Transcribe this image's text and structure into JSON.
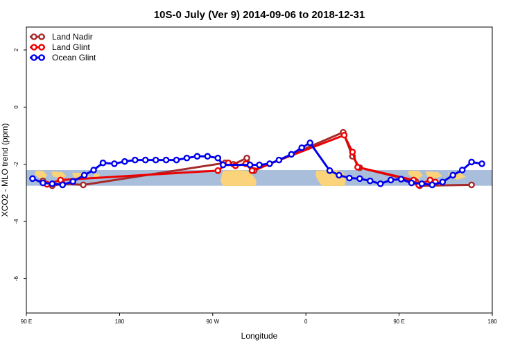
{
  "chart_data": {
    "type": "line",
    "title": "10S-0 July (Ver 9)   2014-09-06 to 2018-12-31",
    "xlabel": "Longitude",
    "ylabel": "XCO2 - MLO trend (ppm)",
    "x_ticks": [
      {
        "value": 90,
        "label": "90 E"
      },
      {
        "value": 180,
        "label": "180"
      },
      {
        "value": 270,
        "label": "90 W"
      },
      {
        "value": 360,
        "label": "0"
      },
      {
        "value": 450,
        "label": "90 E"
      },
      {
        "value": 540,
        "label": "180"
      }
    ],
    "y_ticks": [
      {
        "value": 2,
        "label": "2"
      },
      {
        "value": 0,
        "label": "0"
      },
      {
        "value": -2,
        "label": "-2"
      },
      {
        "value": -4,
        "label": "-4"
      },
      {
        "value": -6,
        "label": "-6"
      }
    ],
    "xlim": [
      90,
      540
    ],
    "ylim": [
      -7.2,
      2.8
    ],
    "grid": false,
    "legend_position": "top-left",
    "map_strip": {
      "ylim": [
        -2.75,
        -2.2
      ],
      "ocean_color": "#a9bedb",
      "land_color": "#fad37a"
    },
    "series": [
      {
        "name": "Land Nadir",
        "color": "#a52a2a",
        "points": [
          [
            106,
            -2.58
          ],
          [
            115,
            -2.75
          ],
          [
            125,
            -2.68
          ],
          [
            145,
            -2.72
          ],
          [
            282,
            -1.95
          ],
          [
            290,
            -2.0
          ],
          [
            303,
            -1.78
          ],
          [
            310,
            -2.22
          ],
          [
            396,
            -0.88
          ],
          [
            405,
            -1.72
          ],
          [
            412,
            -2.12
          ],
          [
            466,
            -2.6
          ],
          [
            470,
            -2.75
          ],
          [
            520,
            -2.72
          ]
        ]
      },
      {
        "name": "Land Glint",
        "color": "#ee0000",
        "points": [
          [
            110,
            -2.7
          ],
          [
            123,
            -2.55
          ],
          [
            275,
            -2.22
          ],
          [
            285,
            -1.95
          ],
          [
            292,
            -2.05
          ],
          [
            302,
            -1.98
          ],
          [
            308,
            -2.22
          ],
          [
            397,
            -0.98
          ],
          [
            405,
            -1.57
          ],
          [
            410,
            -2.1
          ],
          [
            464,
            -2.55
          ],
          [
            469,
            -2.72
          ],
          [
            480,
            -2.55
          ],
          [
            485,
            -2.62
          ]
        ]
      },
      {
        "name": "Ocean Glint",
        "color": "#0000ee",
        "points": [
          [
            96,
            -2.5
          ],
          [
            106,
            -2.65
          ],
          [
            115,
            -2.68
          ],
          [
            125,
            -2.72
          ],
          [
            135,
            -2.6
          ],
          [
            146,
            -2.38
          ],
          [
            155,
            -2.2
          ],
          [
            164,
            -1.95
          ],
          [
            175,
            -1.98
          ],
          [
            185,
            -1.9
          ],
          [
            195,
            -1.85
          ],
          [
            205,
            -1.85
          ],
          [
            215,
            -1.85
          ],
          [
            225,
            -1.85
          ],
          [
            235,
            -1.85
          ],
          [
            245,
            -1.78
          ],
          [
            255,
            -1.72
          ],
          [
            265,
            -1.72
          ],
          [
            275,
            -1.78
          ],
          [
            280,
            -2.02
          ],
          [
            306,
            -2.02
          ],
          [
            315,
            -2.02
          ],
          [
            325,
            -1.98
          ],
          [
            334,
            -1.85
          ],
          [
            346,
            -1.65
          ],
          [
            356,
            -1.42
          ],
          [
            364,
            -1.25
          ],
          [
            383,
            -2.22
          ],
          [
            392,
            -2.38
          ],
          [
            402,
            -2.48
          ],
          [
            412,
            -2.5
          ],
          [
            422,
            -2.58
          ],
          [
            432,
            -2.68
          ],
          [
            442,
            -2.55
          ],
          [
            452,
            -2.52
          ],
          [
            462,
            -2.65
          ],
          [
            472,
            -2.68
          ],
          [
            482,
            -2.72
          ],
          [
            492,
            -2.62
          ],
          [
            502,
            -2.38
          ],
          [
            511,
            -2.2
          ],
          [
            520,
            -1.92
          ],
          [
            530,
            -1.98
          ]
        ]
      }
    ]
  }
}
